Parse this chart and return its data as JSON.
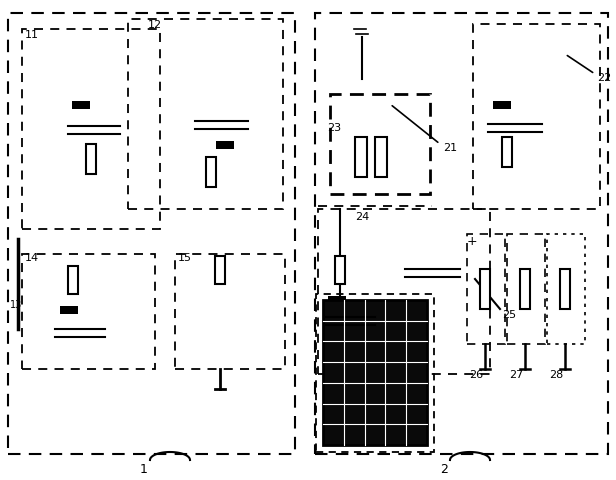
{
  "bg_color": "#ffffff",
  "line_color": "#000000",
  "fig_width": 6.16,
  "fig_height": 4.81,
  "dpi": 100
}
